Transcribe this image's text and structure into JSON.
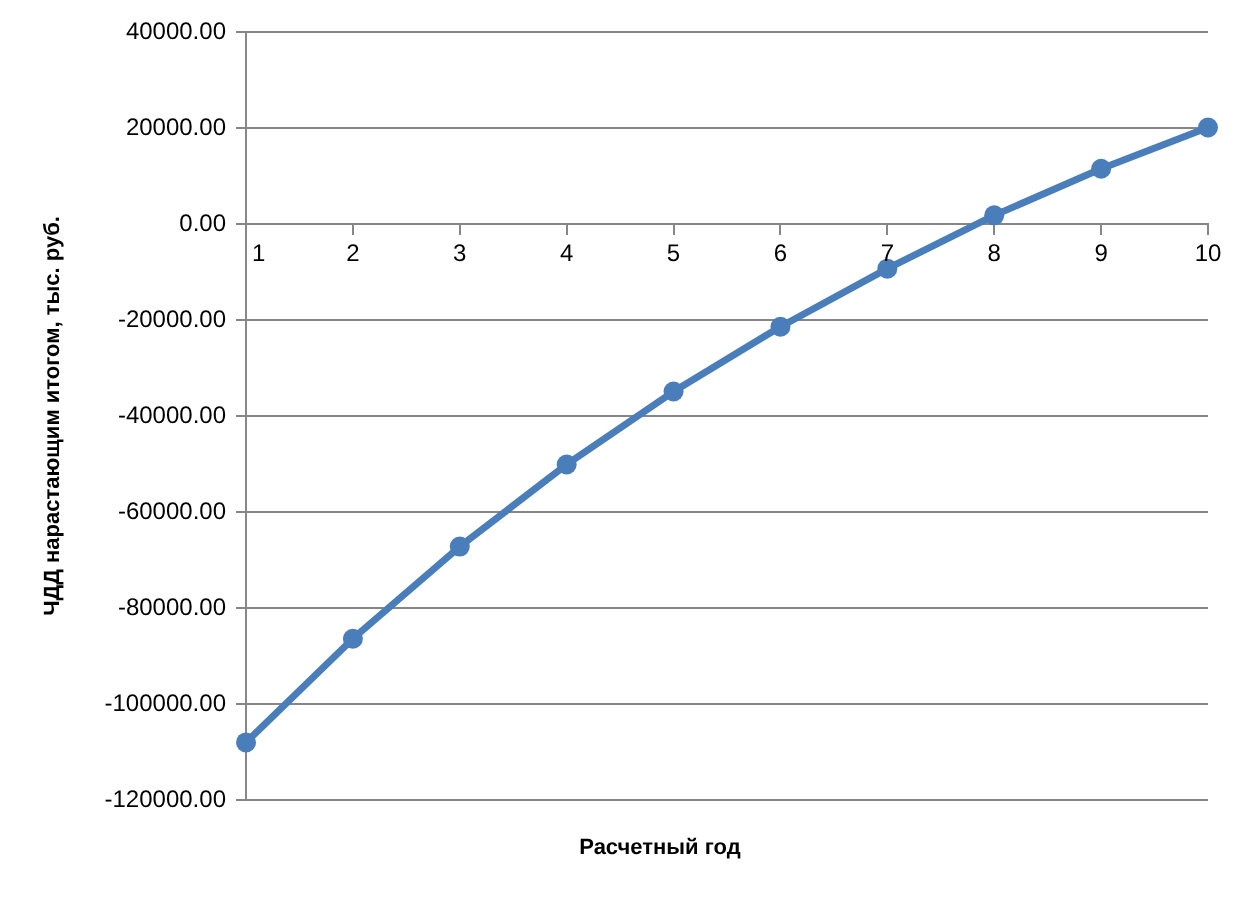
{
  "chart_data": {
    "type": "line",
    "xlabel": "Расчетный год",
    "ylabel": "ЧДД нарастающим итогом, тыс. руб.",
    "categories": [
      "1",
      "2",
      "3",
      "4",
      "5",
      "6",
      "7",
      "8",
      "9",
      "10"
    ],
    "series": [
      {
        "color": "#4a7ebb",
        "values": [
          -108000,
          -86400,
          -67200,
          -50100,
          -34900,
          -21400,
          -9300,
          1800,
          11500,
          20100
        ]
      }
    ],
    "ylim": [
      -120000,
      40000
    ],
    "yticks": [
      {
        "value": -120000,
        "label": "-120000.00"
      },
      {
        "value": -100000,
        "label": "-100000.00"
      },
      {
        "value": -80000,
        "label": "-80000.00"
      },
      {
        "value": -60000,
        "label": "-60000.00"
      },
      {
        "value": -40000,
        "label": "-40000.00"
      },
      {
        "value": -20000,
        "label": "-20000.00"
      },
      {
        "value": 0,
        "label": "0.00"
      },
      {
        "value": 20000,
        "label": "20000.00"
      },
      {
        "value": 40000,
        "label": "40000.00"
      }
    ],
    "grid": "y",
    "marker": "circle"
  }
}
